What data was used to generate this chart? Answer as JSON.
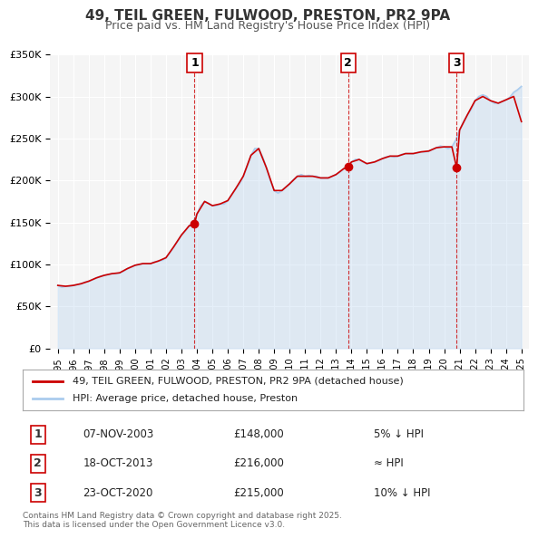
{
  "title": "49, TEIL GREEN, FULWOOD, PRESTON, PR2 9PA",
  "subtitle": "Price paid vs. HM Land Registry's House Price Index (HPI)",
  "legend_line1": "49, TEIL GREEN, FULWOOD, PRESTON, PR2 9PA (detached house)",
  "legend_line2": "HPI: Average price, detached house, Preston",
  "sale_color": "#cc0000",
  "hpi_color": "#aaccee",
  "background_color": "#ffffff",
  "plot_bg_color": "#f5f5f5",
  "grid_color": "#ffffff",
  "vline_color": "#cc0000",
  "ylim": [
    0,
    350000
  ],
  "yticks": [
    0,
    50000,
    100000,
    150000,
    200000,
    250000,
    300000,
    350000
  ],
  "ytick_labels": [
    "£0",
    "£50K",
    "£100K",
    "£150K",
    "£200K",
    "£250K",
    "£300K",
    "£350K"
  ],
  "sale_dates": [
    2003.85,
    2013.79,
    2020.81
  ],
  "sale_prices": [
    148000,
    216000,
    215000
  ],
  "sale_labels": [
    "1",
    "2",
    "3"
  ],
  "vline_dates": [
    2003.85,
    2013.79,
    2020.81
  ],
  "table_entries": [
    {
      "label": "1",
      "date": "07-NOV-2003",
      "price": "£148,000",
      "note": "5% ↓ HPI"
    },
    {
      "label": "2",
      "date": "18-OCT-2013",
      "price": "£216,000",
      "note": "≈ HPI"
    },
    {
      "label": "3",
      "date": "23-OCT-2020",
      "price": "£215,000",
      "note": "10% ↓ HPI"
    }
  ],
  "footer": "Contains HM Land Registry data © Crown copyright and database right 2025.\nThis data is licensed under the Open Government Licence v3.0.",
  "xlim_start": 1994.5,
  "xlim_end": 2025.5,
  "hpi_data": {
    "years": [
      1995.0,
      1995.25,
      1995.5,
      1995.75,
      1996.0,
      1996.25,
      1996.5,
      1996.75,
      1997.0,
      1997.25,
      1997.5,
      1997.75,
      1998.0,
      1998.25,
      1998.5,
      1998.75,
      1999.0,
      1999.25,
      1999.5,
      1999.75,
      2000.0,
      2000.25,
      2000.5,
      2000.75,
      2001.0,
      2001.25,
      2001.5,
      2001.75,
      2002.0,
      2002.25,
      2002.5,
      2002.75,
      2003.0,
      2003.25,
      2003.5,
      2003.75,
      2004.0,
      2004.25,
      2004.5,
      2004.75,
      2005.0,
      2005.25,
      2005.5,
      2005.75,
      2006.0,
      2006.25,
      2006.5,
      2006.75,
      2007.0,
      2007.25,
      2007.5,
      2007.75,
      2008.0,
      2008.25,
      2008.5,
      2008.75,
      2009.0,
      2009.25,
      2009.5,
      2009.75,
      2010.0,
      2010.25,
      2010.5,
      2010.75,
      2011.0,
      2011.25,
      2011.5,
      2011.75,
      2012.0,
      2012.25,
      2012.5,
      2012.75,
      2013.0,
      2013.25,
      2013.5,
      2013.75,
      2014.0,
      2014.25,
      2014.5,
      2014.75,
      2015.0,
      2015.25,
      2015.5,
      2015.75,
      2016.0,
      2016.25,
      2016.5,
      2016.75,
      2017.0,
      2017.25,
      2017.5,
      2017.75,
      2018.0,
      2018.25,
      2018.5,
      2018.75,
      2019.0,
      2019.25,
      2019.5,
      2019.75,
      2020.0,
      2020.25,
      2020.5,
      2020.75,
      2021.0,
      2021.25,
      2021.5,
      2021.75,
      2022.0,
      2022.25,
      2022.5,
      2022.75,
      2023.0,
      2023.25,
      2023.5,
      2023.75,
      2024.0,
      2024.25,
      2024.5,
      2024.75,
      2025.0
    ],
    "values": [
      75000,
      73000,
      74000,
      74000,
      75000,
      76000,
      77000,
      79000,
      80000,
      82000,
      84000,
      86000,
      87000,
      88000,
      89000,
      89000,
      90000,
      92000,
      95000,
      97000,
      99000,
      100000,
      101000,
      101000,
      101000,
      103000,
      104000,
      105000,
      108000,
      114000,
      121000,
      128000,
      135000,
      140000,
      146000,
      150000,
      160000,
      170000,
      175000,
      173000,
      170000,
      170000,
      172000,
      172000,
      176000,
      183000,
      190000,
      196000,
      205000,
      217000,
      230000,
      238000,
      238000,
      228000,
      215000,
      200000,
      188000,
      185000,
      188000,
      192000,
      196000,
      201000,
      205000,
      207000,
      205000,
      206000,
      205000,
      205000,
      203000,
      203000,
      203000,
      205000,
      207000,
      210000,
      214000,
      218000,
      222000,
      225000,
      225000,
      222000,
      220000,
      221000,
      222000,
      224000,
      226000,
      228000,
      229000,
      228000,
      229000,
      231000,
      232000,
      232000,
      232000,
      233000,
      234000,
      234000,
      235000,
      237000,
      239000,
      241000,
      240000,
      238000,
      240000,
      248000,
      260000,
      270000,
      278000,
      285000,
      295000,
      300000,
      302000,
      300000,
      295000,
      292000,
      292000,
      294000,
      296000,
      299000,
      305000,
      308000,
      312000
    ]
  },
  "price_data": {
    "years": [
      1995.0,
      1995.5,
      1996.0,
      1996.5,
      1997.0,
      1997.5,
      1998.0,
      1998.5,
      1999.0,
      1999.5,
      2000.0,
      2000.5,
      2001.0,
      2001.5,
      2002.0,
      2002.5,
      2003.0,
      2003.5,
      2003.85,
      2004.0,
      2004.5,
      2005.0,
      2005.5,
      2006.0,
      2006.5,
      2007.0,
      2007.5,
      2008.0,
      2008.5,
      2009.0,
      2009.5,
      2010.0,
      2010.5,
      2011.0,
      2011.5,
      2012.0,
      2012.5,
      2013.0,
      2013.5,
      2013.79,
      2014.0,
      2014.5,
      2015.0,
      2015.5,
      2016.0,
      2016.5,
      2017.0,
      2017.5,
      2018.0,
      2018.5,
      2019.0,
      2019.5,
      2020.0,
      2020.5,
      2020.81,
      2021.0,
      2021.5,
      2022.0,
      2022.5,
      2023.0,
      2023.5,
      2024.0,
      2024.5,
      2025.0
    ],
    "values": [
      75000,
      74000,
      75000,
      77000,
      80000,
      84000,
      87000,
      89000,
      90000,
      95000,
      99000,
      101000,
      101000,
      104000,
      108000,
      121000,
      135000,
      146000,
      148000,
      160000,
      175000,
      170000,
      172000,
      176000,
      190000,
      205000,
      230000,
      238000,
      215000,
      188000,
      188000,
      196000,
      205000,
      205000,
      205000,
      203000,
      203000,
      207000,
      214000,
      216000,
      222000,
      225000,
      220000,
      222000,
      226000,
      229000,
      229000,
      232000,
      232000,
      234000,
      235000,
      239000,
      240000,
      240000,
      215000,
      260000,
      278000,
      295000,
      300000,
      295000,
      292000,
      296000,
      300000,
      270000
    ]
  }
}
